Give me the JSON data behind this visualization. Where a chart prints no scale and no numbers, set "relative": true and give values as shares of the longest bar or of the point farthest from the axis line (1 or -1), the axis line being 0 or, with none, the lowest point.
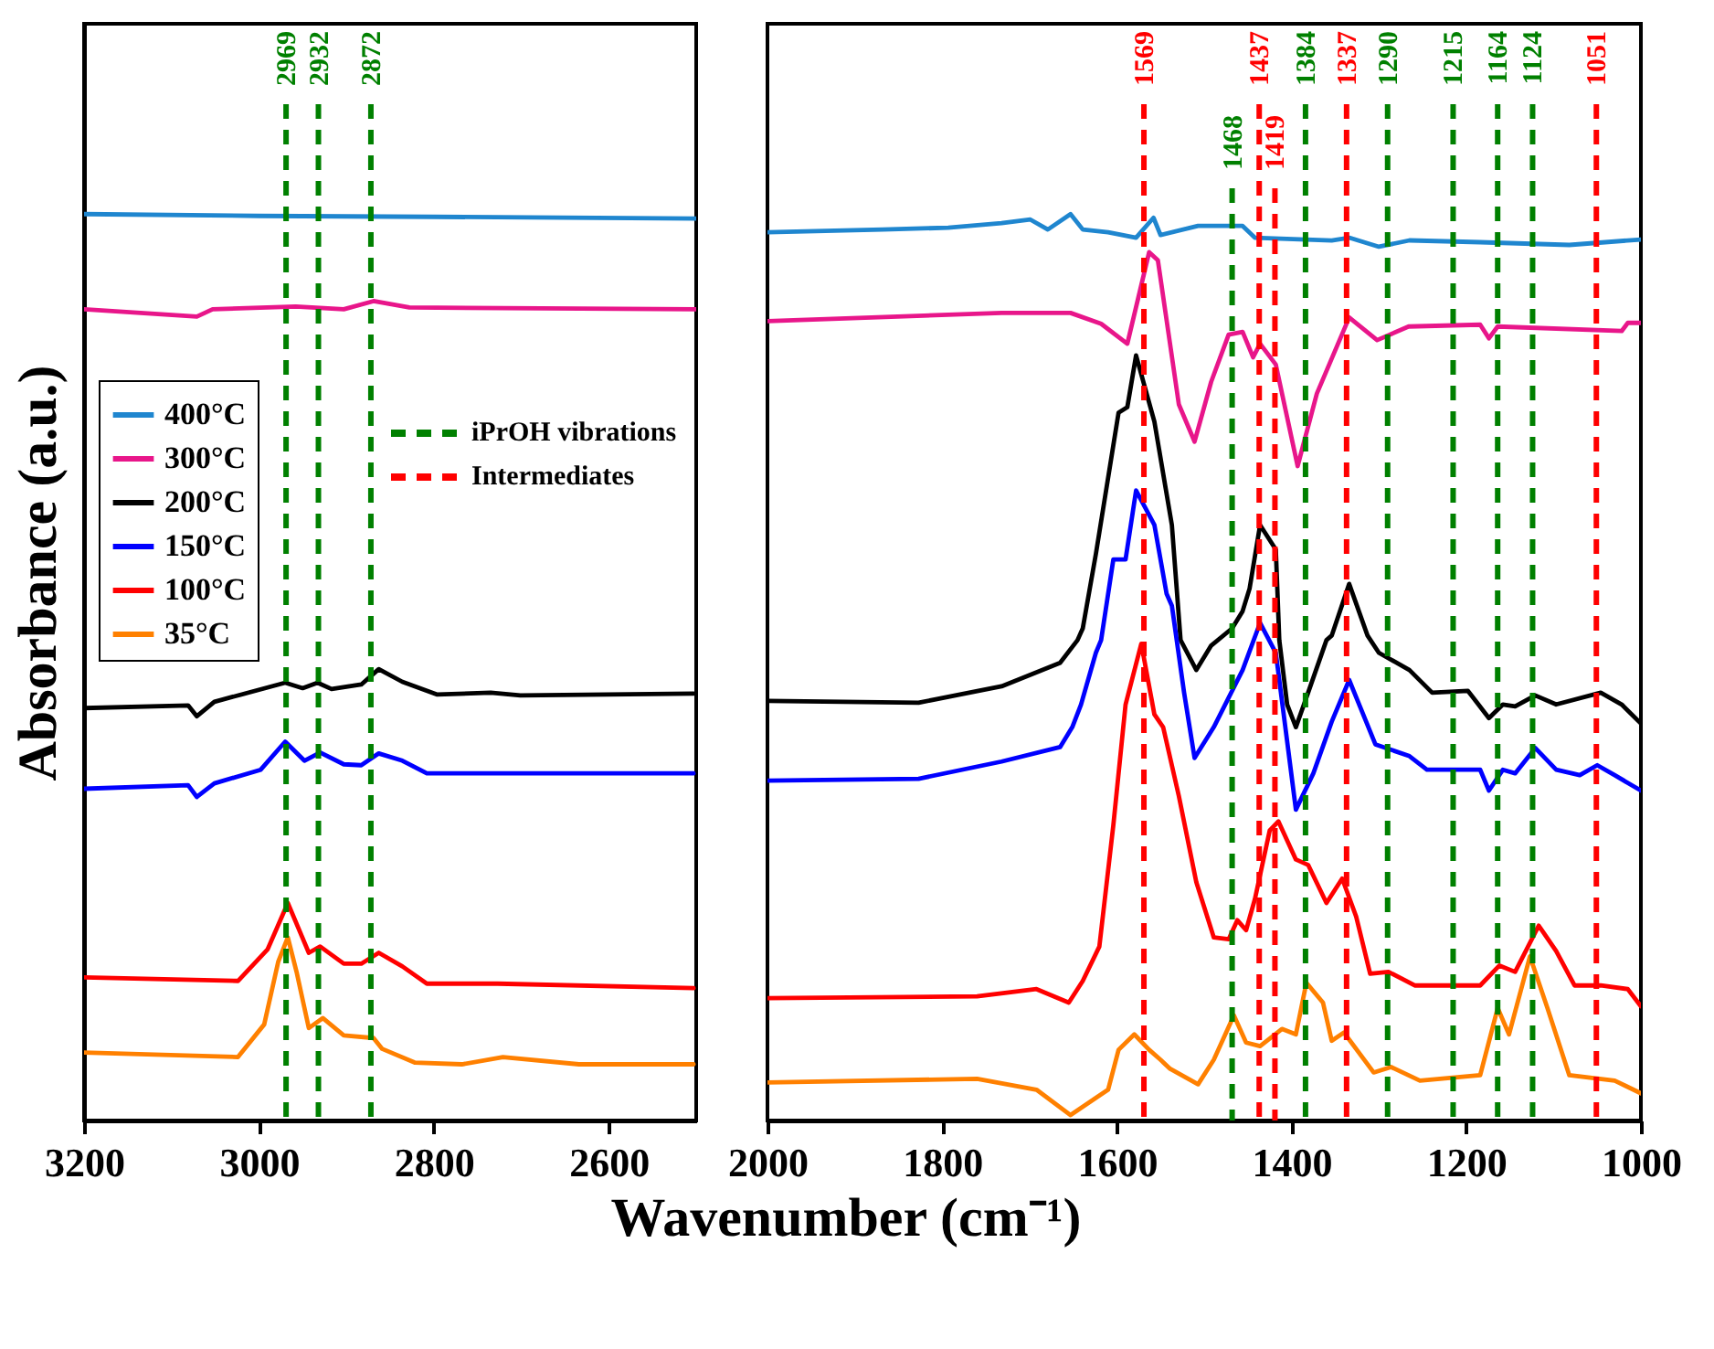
{
  "chart_data": [
    {
      "type": "line",
      "ylabel": "Absorbance (a.u.)",
      "xlabel": "Wavenumber (cm⁻¹)",
      "relative": true,
      "xlim": [
        3200,
        2500
      ],
      "xticks": [
        3200,
        3000,
        2800,
        2600
      ],
      "legend": "top left",
      "annotations": [
        "iPrOH vibrations",
        "Intermediates"
      ],
      "series": [
        {
          "name": "400°C",
          "color": "#1f86cf",
          "x": [
            3200,
            3000,
            2800,
            2500
          ],
          "values": [
            1.0,
            0.998,
            0.997,
            0.995
          ]
        },
        {
          "name": "300°C",
          "color": "#e8168a",
          "x": [
            3200,
            3071,
            3053,
            2958,
            2903,
            2869,
            2828,
            2500
          ],
          "values": [
            0.895,
            0.887,
            0.895,
            0.898,
            0.895,
            0.904,
            0.897,
            0.895
          ]
        },
        {
          "name": "200°C",
          "color": "#000000",
          "x": [
            3200,
            3081,
            3071,
            3051,
            2970,
            2950,
            2933,
            2917,
            2883,
            2863,
            2836,
            2796,
            2735,
            2701,
            2503
          ],
          "values": [
            0.455,
            0.458,
            0.446,
            0.462,
            0.483,
            0.477,
            0.483,
            0.476,
            0.481,
            0.498,
            0.484,
            0.47,
            0.472,
            0.469,
            0.471
          ]
        },
        {
          "name": "150°C",
          "color": "#0000ff",
          "x": [
            3200,
            3081,
            3071,
            3051,
            2998,
            2970,
            2948,
            2930,
            2903,
            2883,
            2863,
            2836,
            2808,
            2735,
            2503
          ],
          "values": [
            0.366,
            0.37,
            0.357,
            0.372,
            0.387,
            0.418,
            0.397,
            0.406,
            0.393,
            0.392,
            0.405,
            0.397,
            0.383,
            0.383,
            0.383
          ]
        },
        {
          "name": "100°C",
          "color": "#ff0000",
          "x": [
            3200,
            3024,
            2990,
            2967,
            2943,
            2930,
            2903,
            2883,
            2863,
            2836,
            2808,
            2727,
            2503
          ],
          "values": [
            0.158,
            0.154,
            0.189,
            0.24,
            0.185,
            0.192,
            0.173,
            0.173,
            0.185,
            0.17,
            0.151,
            0.151,
            0.146
          ]
        },
        {
          "name": "35°C",
          "color": "#ff8000",
          "x": [
            3200,
            3024,
            2994,
            2978,
            2967,
            2957,
            2943,
            2927,
            2903,
            2869,
            2859,
            2822,
            2768,
            2721,
            2634,
            2503
          ],
          "values": [
            0.075,
            0.07,
            0.106,
            0.175,
            0.202,
            0.164,
            0.102,
            0.113,
            0.094,
            0.091,
            0.079,
            0.064,
            0.062,
            0.07,
            0.062,
            0.062
          ]
        }
      ],
      "ref_lines": [
        {
          "axis": "x",
          "value": 2969,
          "label": "2969",
          "color": "#008000",
          "line_style": "dashed"
        },
        {
          "axis": "x",
          "value": 2932,
          "label": "2932",
          "color": "#008000",
          "line_style": "dashed"
        },
        {
          "axis": "x",
          "value": 2872,
          "label": "2872",
          "color": "#008000",
          "line_style": "dashed"
        }
      ]
    },
    {
      "type": "line",
      "relative": true,
      "xlim": [
        2000,
        1000
      ],
      "xticks": [
        2000,
        1800,
        1600,
        1400,
        1200,
        1000
      ],
      "series": [
        {
          "color": "#1f86cf",
          "x": [
            2000,
            1868,
            1793,
            1732,
            1699,
            1679,
            1653,
            1639,
            1610,
            1578,
            1558,
            1550,
            1507,
            1456,
            1442,
            1354,
            1334,
            1300,
            1265,
            1184,
            1082,
            1000
          ],
          "values": [
            0.98,
            0.983,
            0.985,
            0.99,
            0.994,
            0.983,
            1.0,
            0.983,
            0.98,
            0.974,
            0.996,
            0.977,
            0.987,
            0.987,
            0.974,
            0.971,
            0.974,
            0.964,
            0.971,
            0.969,
            0.966,
            0.972
          ]
        },
        {
          "color": "#e8168a",
          "x": [
            2000,
            1732,
            1653,
            1618,
            1588,
            1563,
            1553,
            1529,
            1511,
            1492,
            1472,
            1456,
            1444,
            1436,
            1418,
            1393,
            1371,
            1334,
            1302,
            1266,
            1184,
            1174,
            1164,
            1022,
            1015,
            1000
          ],
          "values": [
            0.882,
            0.891,
            0.891,
            0.879,
            0.857,
            0.958,
            0.949,
            0.79,
            0.749,
            0.815,
            0.867,
            0.87,
            0.842,
            0.857,
            0.834,
            0.722,
            0.802,
            0.886,
            0.861,
            0.876,
            0.878,
            0.863,
            0.876,
            0.871,
            0.88,
            0.88
          ]
        },
        {
          "color": "#000000",
          "x": [
            2000,
            1827,
            1732,
            1665,
            1645,
            1639,
            1624,
            1604,
            1598,
            1588,
            1578,
            1557,
            1537,
            1527,
            1509,
            1492,
            1468,
            1456,
            1448,
            1436,
            1418,
            1414,
            1405,
            1395,
            1381,
            1360,
            1354,
            1334,
            1313,
            1300,
            1265,
            1239,
            1198,
            1174,
            1158,
            1144,
            1121,
            1097,
            1046,
            1022,
            1000
          ],
          "values": [
            0.463,
            0.461,
            0.479,
            0.505,
            0.53,
            0.543,
            0.625,
            0.745,
            0.781,
            0.787,
            0.844,
            0.771,
            0.657,
            0.53,
            0.497,
            0.524,
            0.543,
            0.562,
            0.587,
            0.657,
            0.63,
            0.53,
            0.459,
            0.434,
            0.472,
            0.53,
            0.535,
            0.592,
            0.535,
            0.516,
            0.497,
            0.472,
            0.474,
            0.444,
            0.459,
            0.457,
            0.469,
            0.459,
            0.472,
            0.459,
            0.438
          ]
        },
        {
          "color": "#0000ff",
          "x": [
            2000,
            1827,
            1732,
            1665,
            1651,
            1641,
            1624,
            1618,
            1604,
            1590,
            1578,
            1557,
            1543,
            1537,
            1523,
            1511,
            1489,
            1456,
            1436,
            1418,
            1395,
            1375,
            1354,
            1334,
            1304,
            1265,
            1245,
            1184,
            1174,
            1158,
            1144,
            1121,
            1097,
            1070,
            1050,
            1030,
            1000
          ],
          "values": [
            0.375,
            0.377,
            0.396,
            0.412,
            0.434,
            0.459,
            0.516,
            0.53,
            0.619,
            0.619,
            0.695,
            0.657,
            0.581,
            0.568,
            0.472,
            0.4,
            0.434,
            0.497,
            0.549,
            0.516,
            0.343,
            0.383,
            0.44,
            0.486,
            0.415,
            0.402,
            0.387,
            0.387,
            0.364,
            0.387,
            0.383,
            0.411,
            0.387,
            0.381,
            0.392,
            0.381,
            0.364
          ]
        },
        {
          "color": "#ff0000",
          "x": [
            2000,
            1760,
            1692,
            1655,
            1639,
            1620,
            1604,
            1590,
            1572,
            1557,
            1547,
            1529,
            1509,
            1489,
            1472,
            1462,
            1452,
            1442,
            1425,
            1415,
            1395,
            1381,
            1360,
            1342,
            1326,
            1310,
            1289,
            1259,
            1184,
            1162,
            1144,
            1117,
            1097,
            1076,
            1046,
            1015,
            1000
          ],
          "values": [
            0.135,
            0.137,
            0.145,
            0.13,
            0.154,
            0.192,
            0.326,
            0.459,
            0.526,
            0.448,
            0.434,
            0.358,
            0.263,
            0.202,
            0.2,
            0.221,
            0.21,
            0.244,
            0.32,
            0.33,
            0.288,
            0.282,
            0.24,
            0.267,
            0.225,
            0.162,
            0.164,
            0.149,
            0.149,
            0.171,
            0.164,
            0.215,
            0.187,
            0.149,
            0.149,
            0.145,
            0.126
          ]
        },
        {
          "color": "#ff8000",
          "x": [
            2000,
            1760,
            1692,
            1653,
            1624,
            1610,
            1598,
            1580,
            1563,
            1550,
            1539,
            1507,
            1489,
            1466,
            1452,
            1436,
            1411,
            1395,
            1383,
            1364,
            1354,
            1340,
            1306,
            1286,
            1253,
            1184,
            1164,
            1151,
            1127,
            1107,
            1082,
            1030,
            1000
          ],
          "values": [
            0.042,
            0.046,
            0.034,
            0.006,
            0.025,
            0.034,
            0.078,
            0.095,
            0.078,
            0.067,
            0.057,
            0.04,
            0.067,
            0.116,
            0.086,
            0.082,
            0.101,
            0.095,
            0.152,
            0.13,
            0.088,
            0.097,
            0.053,
            0.059,
            0.044,
            0.05,
            0.124,
            0.095,
            0.181,
            0.124,
            0.05,
            0.044,
            0.03
          ]
        }
      ],
      "ref_lines": [
        {
          "axis": "x",
          "value": 1569,
          "label": "1569",
          "color": "#ff0000",
          "line_style": "dashed"
        },
        {
          "axis": "x",
          "value": 1437,
          "label": "1437",
          "color": "#ff0000",
          "line_style": "dashed"
        },
        {
          "axis": "x",
          "value": 1419,
          "label": "1419",
          "color": "#ff0000",
          "line_style": "dashed"
        },
        {
          "axis": "x",
          "value": 1337,
          "label": "1337",
          "color": "#ff0000",
          "line_style": "dashed"
        },
        {
          "axis": "x",
          "value": 1051,
          "label": "1051",
          "color": "#ff0000",
          "line_style": "dashed"
        },
        {
          "axis": "x",
          "value": 1468,
          "label": "1468",
          "color": "#008000",
          "line_style": "dashed"
        },
        {
          "axis": "x",
          "value": 1384,
          "label": "1384",
          "color": "#008000",
          "line_style": "dashed"
        },
        {
          "axis": "x",
          "value": 1290,
          "label": "1290",
          "color": "#008000",
          "line_style": "dashed"
        },
        {
          "axis": "x",
          "value": 1215,
          "label": "1215",
          "color": "#008000",
          "line_style": "dashed"
        },
        {
          "axis": "x",
          "value": 1164,
          "label": "1164",
          "color": "#008000",
          "line_style": "dashed"
        },
        {
          "axis": "x",
          "value": 1124,
          "label": "1124",
          "color": "#008000",
          "line_style": "dashed"
        }
      ]
    }
  ]
}
